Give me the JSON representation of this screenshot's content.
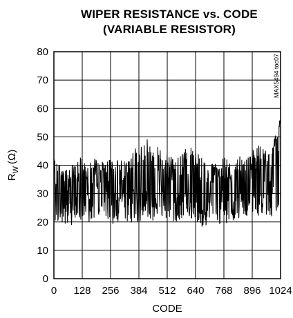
{
  "chart_data": {
    "type": "line",
    "title_line1": "WIPER RESISTANCE vs. CODE",
    "title_line2": "(VARIABLE RESISTOR)",
    "xlabel": "CODE",
    "ylabel": "R",
    "ylabel_sub": "W",
    "ylabel_unit": "(Ω)",
    "side_label": "MAX5494 toc07",
    "xlim": [
      0,
      1024
    ],
    "ylim": [
      0,
      80
    ],
    "x_ticks": [
      "0",
      "128",
      "256",
      "384",
      "512",
      "640",
      "768",
      "896",
      "1024"
    ],
    "y_ticks": [
      "0",
      "10",
      "20",
      "30",
      "40",
      "50",
      "60",
      "70",
      "80"
    ],
    "grid": true,
    "series": [
      {
        "x": [
          0,
          32,
          64,
          96,
          128,
          160,
          192,
          224,
          256,
          288,
          320,
          352,
          384,
          416,
          448,
          480,
          512,
          544,
          576,
          608,
          640,
          672,
          704,
          736,
          768,
          800,
          832,
          864,
          896,
          928,
          960,
          992,
          1024
        ],
        "values": [
          32,
          30,
          31,
          30,
          33,
          32,
          31,
          31,
          32,
          31,
          32,
          32,
          33,
          35,
          32,
          33,
          32,
          31,
          32,
          34,
          32,
          30,
          31,
          31,
          32,
          31,
          33,
          33,
          34,
          33,
          33,
          34,
          56
        ],
        "min": [
          21,
          19,
          18,
          20,
          21,
          20,
          18,
          20,
          19,
          20,
          21,
          19,
          20,
          22,
          20,
          21,
          20,
          19,
          21,
          22,
          20,
          18,
          18,
          19,
          20,
          19,
          21,
          22,
          23,
          22,
          21,
          22,
          22
        ],
        "max": [
          42,
          41,
          40,
          40,
          44,
          43,
          42,
          41,
          42,
          42,
          43,
          44,
          48,
          51,
          46,
          47,
          44,
          43,
          44,
          48,
          45,
          42,
          40,
          41,
          43,
          42,
          44,
          43,
          45,
          47,
          45,
          49,
          56
        ]
      }
    ]
  }
}
